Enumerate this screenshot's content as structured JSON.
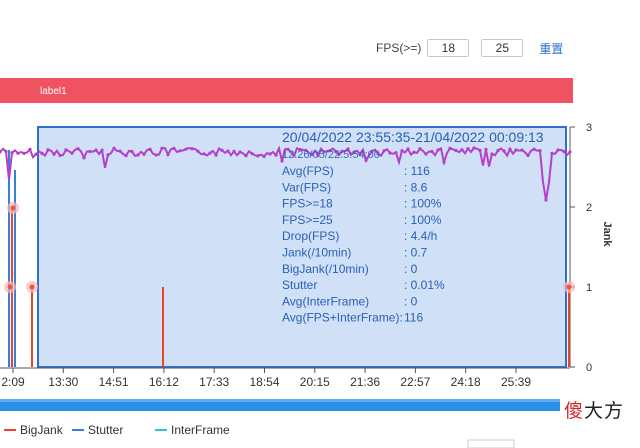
{
  "toolbar": {
    "fps_label": "FPS(>=)",
    "threshold1": "18",
    "threshold2": "25",
    "reset_label": "重置"
  },
  "band_label": "label1",
  "chart_data": {
    "type": "line",
    "y_right_label": "Jank",
    "y_right_ticks": [
      "0",
      "1",
      "2",
      "3"
    ],
    "x_ticks": [
      "2:09",
      "13:30",
      "14:51",
      "16:12",
      "17:33",
      "18:54",
      "20:15",
      "21:36",
      "22:57",
      "24:18",
      "25:39"
    ],
    "tooltip": {
      "range": "20/04/2022 23:55:35-21/04/2022 00:09:13",
      "overlap_text": "12:26/05/22:5:54:00",
      "rows": [
        {
          "label": "Avg(FPS)",
          "value": ": 116"
        },
        {
          "label": "Var(FPS)",
          "value": ": 8.6"
        },
        {
          "label": "FPS>=18",
          "value": ": 100%"
        },
        {
          "label": "FPS>=25",
          "value": ": 100%"
        },
        {
          "label": "Drop(FPS)",
          "value": ": 4.4/h"
        },
        {
          "label": "Jank(/10min)",
          "value": ": 0.7"
        },
        {
          "label": "BigJank(/10min)",
          "value": ": 0"
        },
        {
          "label": "Stutter",
          "value": ": 0.01%"
        },
        {
          "label": "Avg(InterFrame)",
          "value": ": 0"
        },
        {
          "label": "Avg(FPS+InterFrame):",
          "value": "116"
        }
      ]
    },
    "legend": [
      {
        "name": "BigJank",
        "color": "#e8452c"
      },
      {
        "name": "Stutter",
        "color": "#3a7fd5"
      },
      {
        "name": "InterFrame",
        "color": "#2ec4d6"
      }
    ],
    "colors": {
      "fps_line": "#b53fc9",
      "band": "#ef5361",
      "selection_fill": "#cfe0f7",
      "selection_border": "#2f6fd0",
      "scroll_bar": "#2a8fe8",
      "jank_marker": "#e65a3a"
    }
  },
  "watermark": {
    "part1": "傻",
    "part2": "大方"
  }
}
